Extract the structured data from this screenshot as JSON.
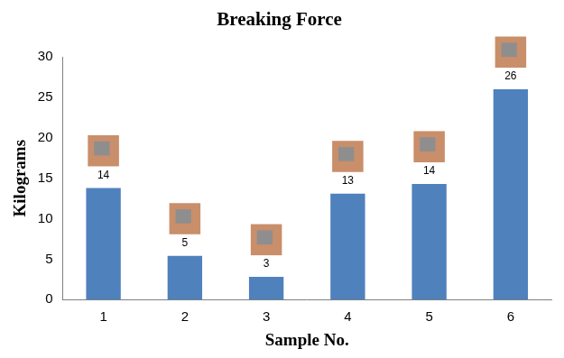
{
  "chart_data": {
    "type": "bar",
    "title": "Breaking Force",
    "x_label": "Sample No.",
    "y_label": "Kilograms",
    "categories": [
      "1",
      "2",
      "3",
      "4",
      "5",
      "6"
    ],
    "values": [
      13.8,
      5.4,
      2.8,
      13.1,
      14.3,
      26
    ],
    "value_labels": [
      "14",
      "5",
      "3",
      "13",
      "14",
      "26"
    ],
    "data_labels": true,
    "color": "#4f81bd",
    "ylim": [
      0,
      30
    ],
    "yticks": [
      0,
      5,
      10,
      15,
      20,
      25,
      30
    ],
    "grid": false
  }
}
